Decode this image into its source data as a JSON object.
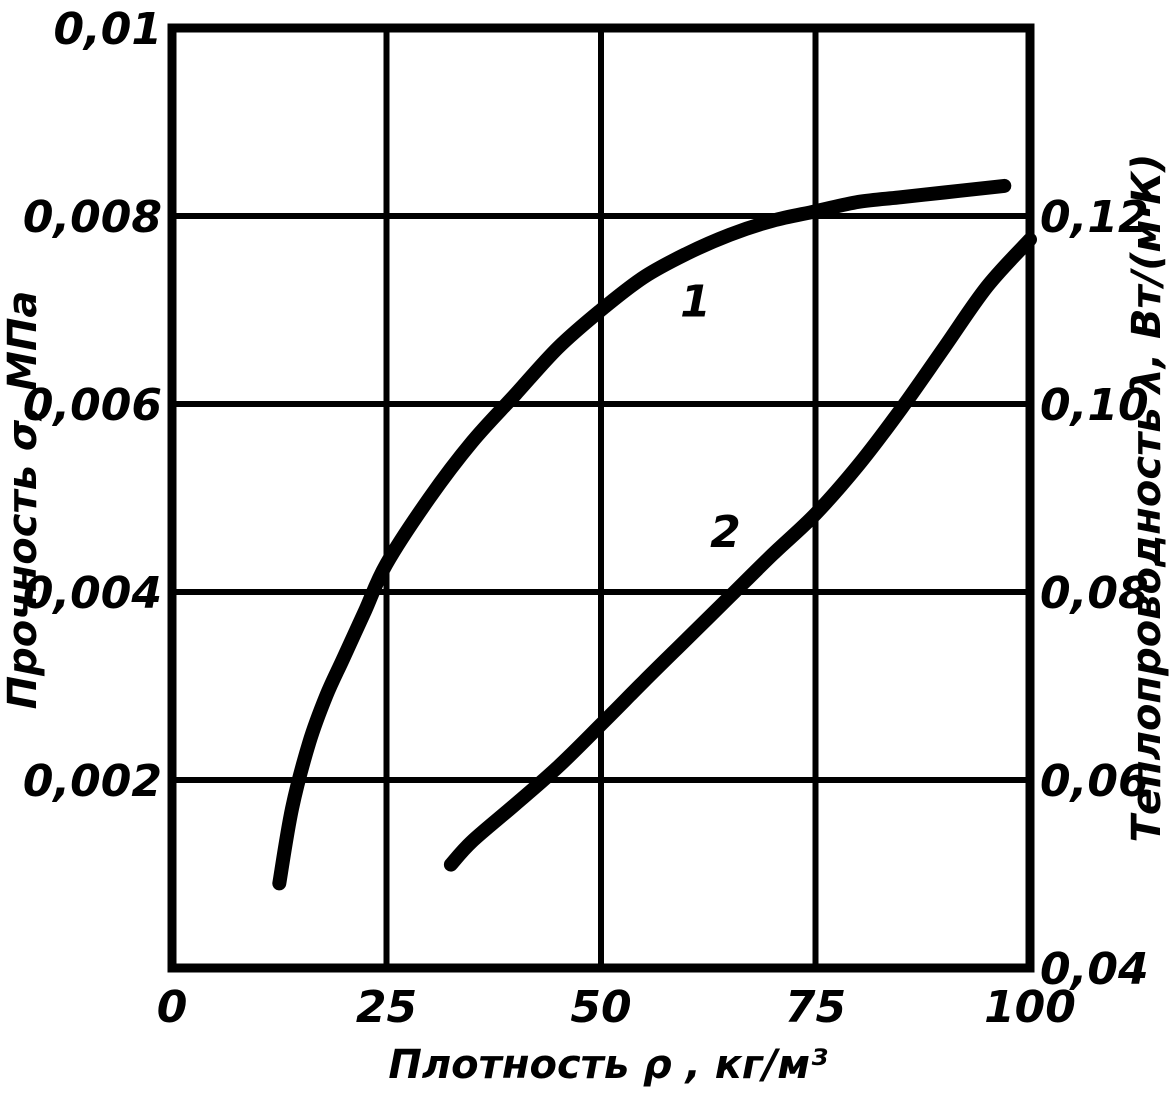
{
  "chart_data": {
    "type": "line",
    "xlabel": "Плотность ρ , кг/м³",
    "ylabel": "Прочность σ, МПа",
    "y2label": "Теплопроводность λ, Вт/(м·К)",
    "xlim": [
      0,
      100
    ],
    "ylim": [
      0,
      0.01
    ],
    "y2lim": [
      0.04,
      0.14
    ],
    "x_ticks": [
      "0",
      "25",
      "50",
      "75",
      "100"
    ],
    "y_ticks": [
      "0,002",
      "0,004",
      "0,006",
      "0,008",
      "0,01"
    ],
    "y2_ticks": [
      "0,04",
      "0,06",
      "0,08",
      "0,10",
      "0,12"
    ],
    "grid": true,
    "series": [
      {
        "name": "1",
        "axis": "left",
        "x": [
          12.5,
          14,
          16,
          18,
          20,
          22.5,
          25,
          30,
          35,
          40,
          45,
          50,
          55,
          60,
          65,
          70,
          75,
          80,
          85,
          90,
          95,
          97
        ],
        "y": [
          0.0009,
          0.0017,
          0.0024,
          0.0029,
          0.0033,
          0.0038,
          0.0043,
          0.005,
          0.0056,
          0.0061,
          0.0066,
          0.007,
          0.00735,
          0.0076,
          0.0078,
          0.00795,
          0.00805,
          0.00815,
          0.0082,
          0.00825,
          0.0083,
          0.00832
        ]
      },
      {
        "name": "2",
        "axis": "right",
        "x": [
          32.5,
          35,
          40,
          45,
          50,
          55,
          60,
          65,
          70,
          75,
          80,
          85,
          90,
          95,
          100
        ],
        "y": [
          0.051,
          0.0535,
          0.0574,
          0.0614,
          0.0659,
          0.0705,
          0.075,
          0.0795,
          0.084,
          0.0883,
          0.0935,
          0.0995,
          0.106,
          0.1125,
          0.1175
        ]
      }
    ],
    "curve_labels": [
      {
        "text": "1",
        "x": 61,
        "y": 0.0071
      },
      {
        "text": "2",
        "x": 64.5,
        "y": 0.00465
      }
    ]
  }
}
